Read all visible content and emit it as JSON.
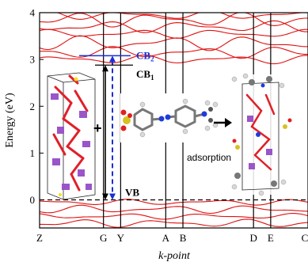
{
  "chart_data": {
    "type": "line",
    "xlabel": "k-point",
    "ylabel": "Energy (eV)",
    "ylim": [
      -0.6,
      4
    ],
    "y_ticks": [
      0,
      1,
      2,
      3,
      4
    ],
    "x_ticks": [
      {
        "label": "Z",
        "pos": 0.0
      },
      {
        "label": "G",
        "pos": 0.238
      },
      {
        "label": "Y",
        "pos": 0.302
      },
      {
        "label": "A",
        "pos": 0.47
      },
      {
        "label": "B",
        "pos": 0.534
      },
      {
        "label": "D",
        "pos": 0.797
      },
      {
        "label": "E",
        "pos": 0.861
      },
      {
        "label": "C",
        "pos": 1.0
      }
    ],
    "fermi_level": 0,
    "band_color": "#e01010",
    "conduction_bands": [
      3.0,
      3.15,
      3.35,
      3.55,
      3.7,
      3.85,
      3.95
    ],
    "valence_bands": [
      -0.05,
      -0.2,
      -0.35,
      -0.5
    ],
    "annotations": {
      "cb1": {
        "label": "CB",
        "sub": "1",
        "energy": 2.88,
        "color": "#000000"
      },
      "cb2": {
        "label": "CB",
        "sub": "2",
        "energy": 3.08,
        "color": "#1a2ed8"
      },
      "vb": {
        "label": "VB",
        "energy": 0.0,
        "color": "#000000"
      },
      "plus": "+",
      "adsorption": "adsorption"
    }
  }
}
